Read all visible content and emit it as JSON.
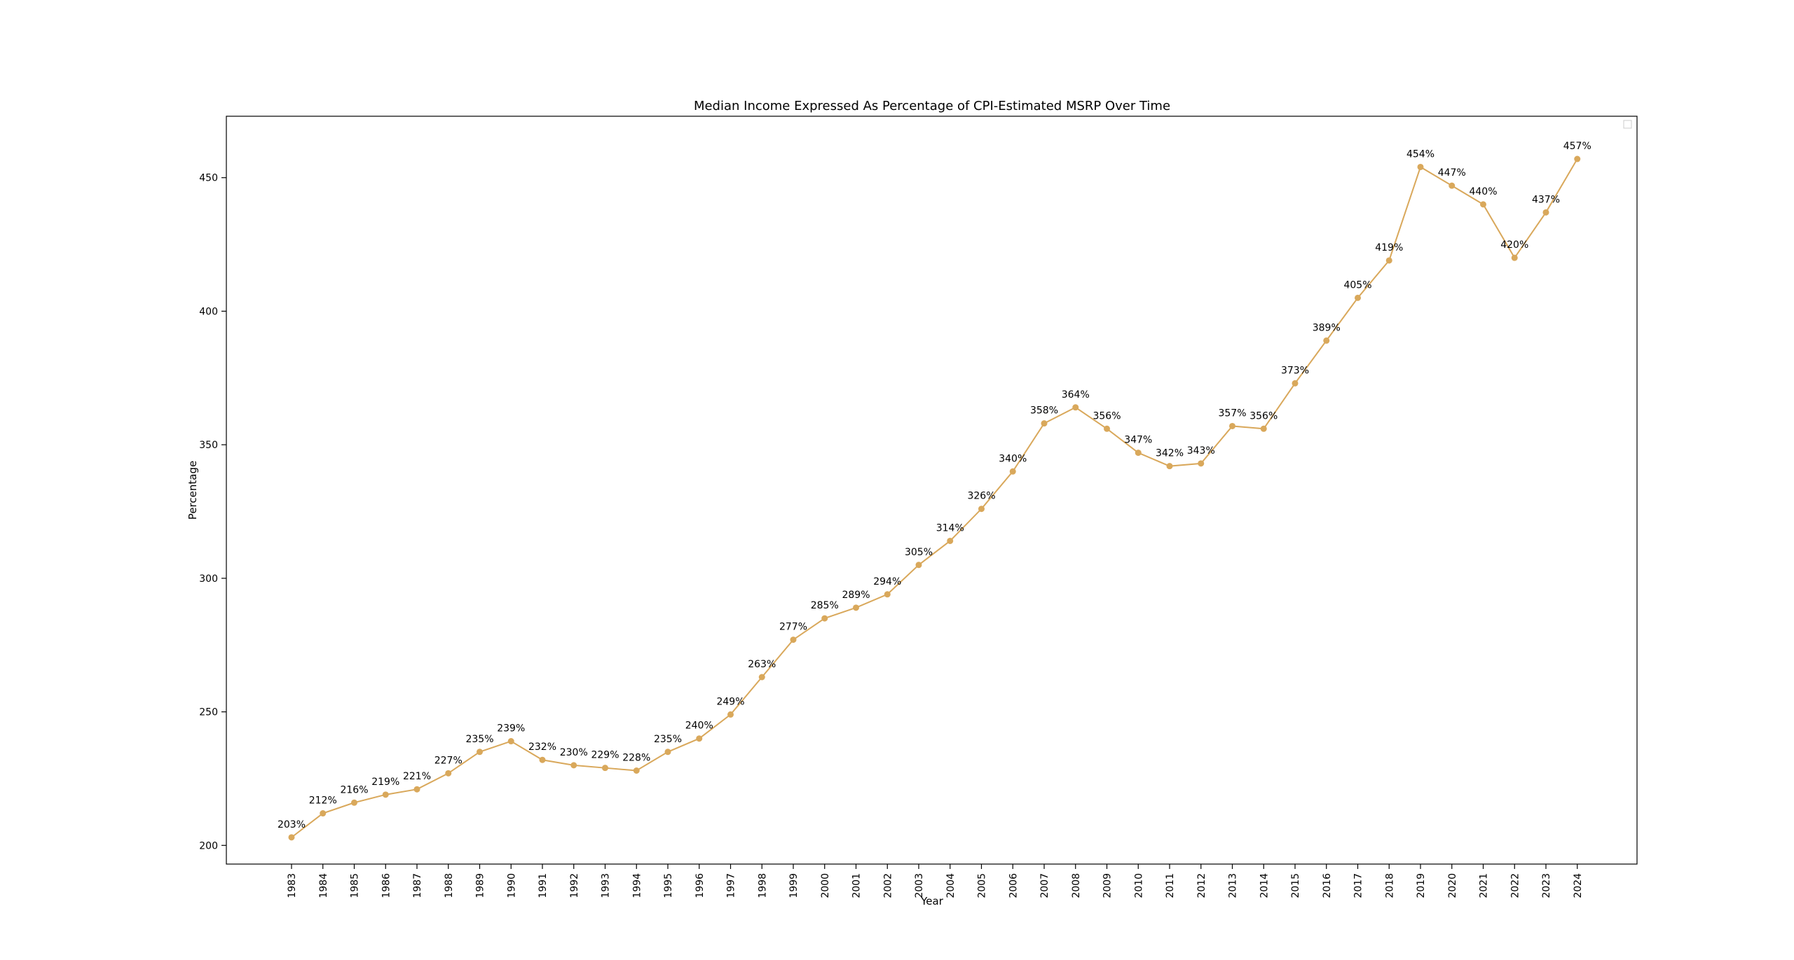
{
  "chart_data": {
    "type": "line",
    "title": "Median Income Expressed As Percentage of CPI-Estimated MSRP Over Time",
    "xlabel": "Year",
    "ylabel": "Percentage",
    "x": [
      "1983",
      "1984",
      "1985",
      "1986",
      "1987",
      "1988",
      "1989",
      "1990",
      "1991",
      "1992",
      "1993",
      "1994",
      "1995",
      "1996",
      "1997",
      "1998",
      "1999",
      "2000",
      "2001",
      "2002",
      "2003",
      "2004",
      "2005",
      "2006",
      "2007",
      "2008",
      "2009",
      "2010",
      "2011",
      "2012",
      "2013",
      "2014",
      "2015",
      "2016",
      "2017",
      "2018",
      "2019",
      "2020",
      "2021",
      "2022",
      "2023",
      "2024"
    ],
    "series": [
      {
        "values": [
          203,
          212,
          216,
          219,
          221,
          227,
          235,
          239,
          232,
          230,
          229,
          228,
          235,
          240,
          249,
          263,
          277,
          285,
          289,
          294,
          305,
          314,
          326,
          340,
          358,
          364,
          356,
          347,
          342,
          343,
          357,
          356,
          373,
          389,
          405,
          419,
          454,
          447,
          440,
          420,
          437,
          457
        ],
        "point_labels": [
          "203%",
          "212%",
          "216%",
          "219%",
          "221%",
          "227%",
          "235%",
          "239%",
          "232%",
          "230%",
          "229%",
          "228%",
          "235%",
          "240%",
          "249%",
          "263%",
          "277%",
          "285%",
          "289%",
          "294%",
          "305%",
          "314%",
          "326%",
          "340%",
          "358%",
          "364%",
          "356%",
          "347%",
          "342%",
          "343%",
          "357%",
          "356%",
          "373%",
          "389%",
          "405%",
          "419%",
          "454%",
          "447%",
          "440%",
          "420%",
          "437%",
          "457%"
        ],
        "color": "#d9a85b"
      }
    ],
    "yticks": [
      200,
      250,
      300,
      350,
      400,
      450
    ],
    "ylim": [
      193,
      473
    ],
    "grid": false,
    "legend": "top-right (empty)"
  }
}
